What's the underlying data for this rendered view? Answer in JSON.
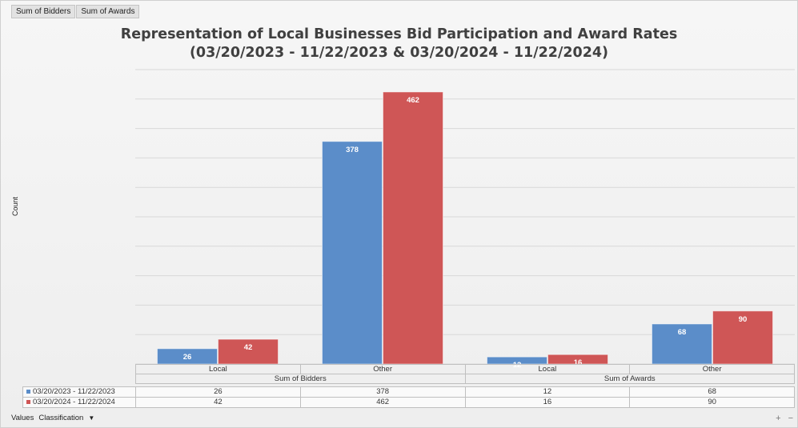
{
  "field_buttons": [
    "Sum of Bidders",
    "Sum of Awards"
  ],
  "chart_data": {
    "type": "bar",
    "title": "Representation of Local Businesses Bid Participation and Award Rates",
    "subtitle": "(03/20/2023 - 11/22/2023 & 03/20/2024 - 11/22/2024)",
    "ylabel": "Count",
    "xlabel": "",
    "grid": true,
    "legend": "data-table",
    "ylim": [
      0,
      500
    ],
    "groups": [
      {
        "label": "Sum of Bidders",
        "categories": [
          "Local",
          "Other"
        ]
      },
      {
        "label": "Sum of Awards",
        "categories": [
          "Local",
          "Other"
        ]
      }
    ],
    "series": [
      {
        "name": "03/20/2023 - 11/22/2023",
        "color": "#5b8dc9",
        "values": [
          26,
          378,
          12,
          68
        ]
      },
      {
        "name": "03/20/2024 - 11/22/2024",
        "color": "#cf5656",
        "values": [
          42,
          462,
          16,
          90
        ]
      }
    ]
  },
  "bottom_bar": {
    "values_label": "Values",
    "classification_label": "Classification"
  },
  "zoom": {
    "plus": "+",
    "minus": "−"
  }
}
